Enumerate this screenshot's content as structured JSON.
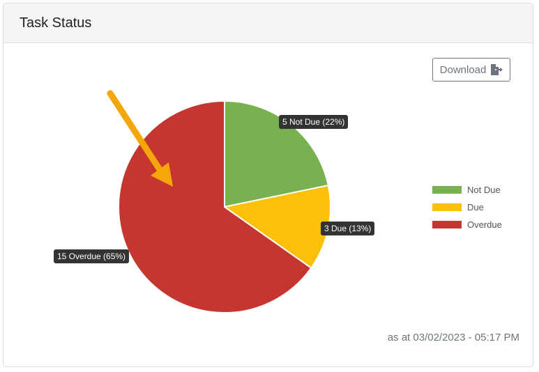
{
  "panel": {
    "title": "Task Status",
    "download_label": "Download",
    "download_icon": "file-export-icon",
    "as_at": "as at 03/02/2023 - 05:17 PM"
  },
  "chart_data": {
    "type": "pie",
    "categories": [
      "Not Due",
      "Due",
      "Overdue"
    ],
    "values": [
      5,
      3,
      15
    ],
    "percentages": [
      22,
      13,
      65
    ],
    "colors": [
      "#77b150",
      "#fdc00a",
      "#c63630"
    ],
    "data_labels": [
      "5 Not Due (22%)",
      "3 Due (13%)",
      "15 Overdue (65%)"
    ],
    "legend": "right",
    "annotation": "orange arrow pointing to Overdue slice"
  }
}
